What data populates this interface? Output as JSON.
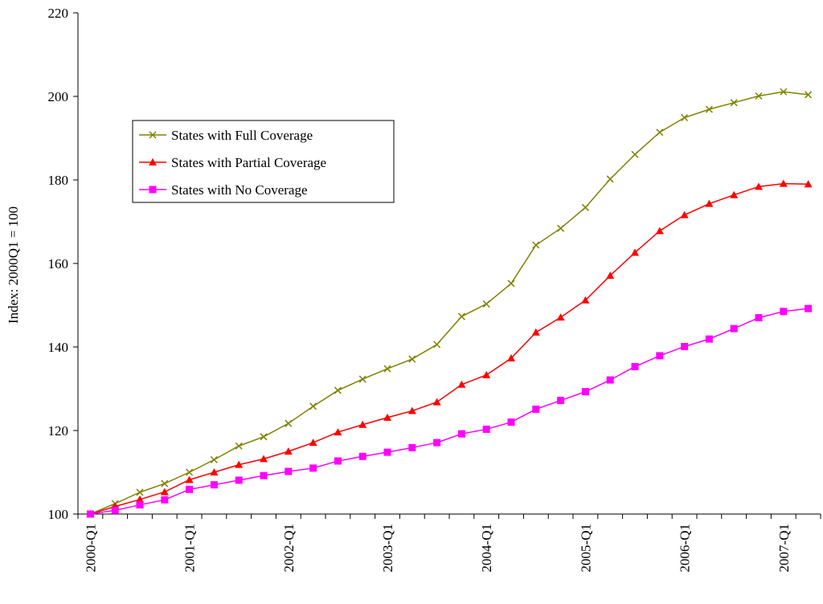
{
  "chart_data": {
    "type": "line",
    "y_label": "Index: 2000Q1 = 100",
    "categories": [
      "2000-Q1",
      null,
      null,
      null,
      "2001-Q1",
      null,
      null,
      null,
      "2002-Q1",
      null,
      null,
      null,
      "2003-Q1",
      null,
      null,
      null,
      "2004-Q1",
      null,
      null,
      null,
      "2005-Q1",
      null,
      null,
      null,
      "2006-Q1",
      null,
      null,
      null,
      "2007-Q1",
      null
    ],
    "series": [
      {
        "name": "States with Full Coverage",
        "color": "#808000",
        "marker": "x",
        "values": [
          100,
          102.5,
          105.2,
          107.3,
          110,
          113,
          116.3,
          118.5,
          121.7,
          125.8,
          129.6,
          132.3,
          134.8,
          137.1,
          140.6,
          147.3,
          150.3,
          155.2,
          164.4,
          168.4,
          173.4,
          180.2,
          186.1,
          191.4,
          194.9,
          196.9,
          198.5,
          200.1,
          201.1,
          200.4
        ]
      },
      {
        "name": "States with Partial Coverage",
        "color": "#ff0000",
        "marker": "triangle",
        "values": [
          100,
          101.8,
          103.5,
          105.3,
          108.2,
          110,
          111.8,
          113.2,
          115,
          117.1,
          119.6,
          121.4,
          123.1,
          124.7,
          126.8,
          131,
          133.3,
          137.3,
          143.5,
          147.1,
          151.2,
          157.1,
          162.6,
          167.8,
          171.6,
          174.3,
          176.4,
          178.4,
          179.1,
          179
        ]
      },
      {
        "name": "States with No Coverage",
        "color": "#ff00ff",
        "marker": "square",
        "values": [
          100,
          100.9,
          102.2,
          103.4,
          105.9,
          107,
          108.1,
          109.2,
          110.2,
          111,
          112.7,
          113.8,
          114.8,
          115.9,
          117.1,
          119.2,
          120.3,
          122,
          125.1,
          127.2,
          129.3,
          132.1,
          135.3,
          137.9,
          140.1,
          141.9,
          144.4,
          147,
          148.5,
          149.2
        ]
      }
    ],
    "ylim": [
      100,
      220
    ],
    "yticks": [
      100,
      120,
      140,
      160,
      180,
      200,
      220
    ]
  }
}
